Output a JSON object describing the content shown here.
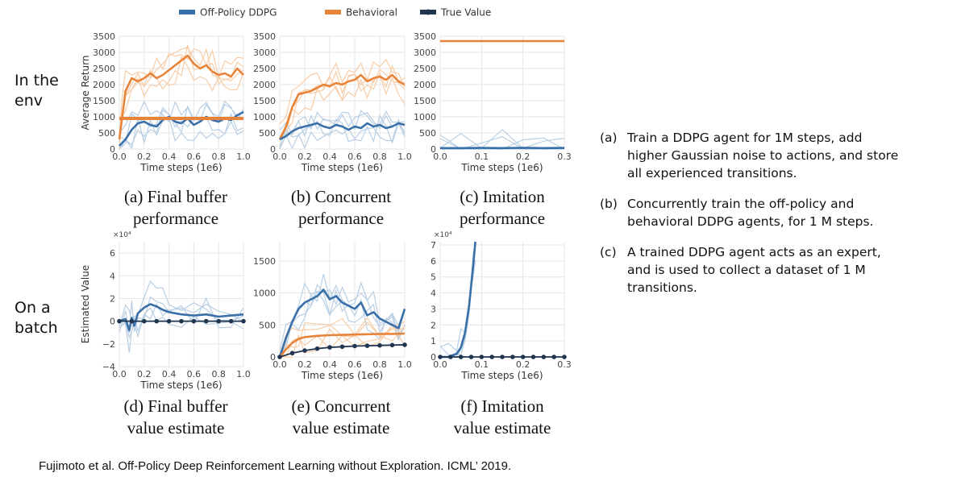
{
  "legend": [
    {
      "label": "Off-Policy DDPG",
      "color": "#3a6fa8",
      "marker": "line"
    },
    {
      "label": "Behavioral",
      "color": "#e8843a",
      "marker": "line"
    },
    {
      "label": "True Value",
      "color": "#1f3550",
      "marker": "dot-line"
    }
  ],
  "row_labels": {
    "top": [
      "In the",
      "env"
    ],
    "bottom": [
      "On a",
      "batch"
    ]
  },
  "captions": [
    [
      "(a) Final buffer",
      "performance"
    ],
    [
      "(b) Concurrent",
      "performance"
    ],
    [
      "(c) Imitation",
      "performance"
    ],
    [
      "(d) Final buffer",
      "value estimate"
    ],
    [
      "(e) Concurrent",
      "value estimate"
    ],
    [
      "(f) Imitation",
      "value estimate"
    ]
  ],
  "notes": [
    {
      "tag": "(a)",
      "lines": [
        "Train a DDPG agent for 1M steps, add",
        "higher Gaussian noise to actions, and store",
        "all experienced transitions."
      ]
    },
    {
      "tag": "(b)",
      "lines": [
        "Concurrently train the off-policy and",
        "behavioral DDPG agents, for 1 M steps."
      ]
    },
    {
      "tag": "(c)",
      "lines": [
        "A trained DDPG agent acts as an expert,",
        "and is used to collect a dataset of 1 M",
        "transitions."
      ]
    }
  ],
  "citation": "Fujimoto et al. Off-Policy Deep Reinforcement Learning without Exploration. ICML’ 2019.",
  "colors": {
    "ddpg": "#3a6fa8",
    "behavioral": "#e8843a",
    "true_value": "#1f3550",
    "light_blue": "#b9cfe4",
    "light_orange": "#f6cda8"
  },
  "chart_data": [
    {
      "id": "a",
      "type": "line",
      "xlabel": "Time steps (1e6)",
      "ylabel": "Average Return",
      "xlim": [
        0,
        1.0
      ],
      "ylim": [
        0,
        3500
      ],
      "xticks": [
        "0.0",
        "0.2",
        "0.4",
        "0.6",
        "0.8",
        "1.0"
      ],
      "xtick_values": [
        0,
        0.2,
        0.4,
        0.6,
        0.8,
        1.0
      ],
      "yticks": [
        "0",
        "500",
        "1000",
        "1500",
        "2000",
        "2500",
        "3000",
        "3500"
      ],
      "ytick_values": [
        0,
        500,
        1000,
        1500,
        2000,
        2500,
        3000,
        3500
      ],
      "y_multiplier": "",
      "series": [
        {
          "role": "behavioral",
          "x": [
            0,
            0.02,
            0.05,
            0.1,
            0.15,
            0.2,
            0.25,
            0.3,
            0.35,
            0.4,
            0.45,
            0.5,
            0.55,
            0.6,
            0.65,
            0.7,
            0.75,
            0.8,
            0.85,
            0.9,
            0.95,
            1.0
          ],
          "y": [
            300,
            900,
            1800,
            2200,
            2100,
            2200,
            2350,
            2200,
            2300,
            2450,
            2600,
            2750,
            2900,
            2650,
            2500,
            2600,
            2400,
            2300,
            2350,
            2250,
            2500,
            2300
          ]
        },
        {
          "role": "ddpg",
          "x": [
            0,
            0.05,
            0.1,
            0.15,
            0.2,
            0.25,
            0.3,
            0.35,
            0.4,
            0.45,
            0.5,
            0.55,
            0.6,
            0.65,
            0.7,
            0.75,
            0.8,
            0.85,
            0.9,
            0.95,
            1.0
          ],
          "y": [
            100,
            300,
            600,
            800,
            850,
            750,
            700,
            900,
            1000,
            850,
            800,
            950,
            750,
            850,
            1000,
            900,
            850,
            950,
            900,
            1050,
            1150
          ]
        },
        {
          "role": "flat_behavioral",
          "x": [
            0,
            1.0
          ],
          "y": [
            950,
            950
          ]
        }
      ]
    },
    {
      "id": "b",
      "type": "line",
      "xlabel": "Time steps (1e6)",
      "ylabel": "",
      "xlim": [
        0,
        1.0
      ],
      "ylim": [
        0,
        3500
      ],
      "xticks": [
        "0.0",
        "0.2",
        "0.4",
        "0.6",
        "0.8",
        "1.0"
      ],
      "xtick_values": [
        0,
        0.2,
        0.4,
        0.6,
        0.8,
        1.0
      ],
      "yticks": [
        "0",
        "500",
        "1000",
        "1500",
        "2000",
        "2500",
        "3000",
        "3500"
      ],
      "ytick_values": [
        0,
        500,
        1000,
        1500,
        2000,
        2500,
        3000,
        3500
      ],
      "y_multiplier": "",
      "series": [
        {
          "role": "behavioral",
          "x": [
            0,
            0.05,
            0.1,
            0.15,
            0.2,
            0.25,
            0.3,
            0.35,
            0.4,
            0.45,
            0.5,
            0.55,
            0.6,
            0.65,
            0.7,
            0.75,
            0.8,
            0.85,
            0.9,
            0.95,
            1.0
          ],
          "y": [
            300,
            700,
            1300,
            1700,
            1750,
            1800,
            1900,
            2000,
            1950,
            2050,
            2000,
            2100,
            2150,
            2300,
            2100,
            2200,
            2250,
            2150,
            2300,
            2100,
            2000
          ]
        },
        {
          "role": "ddpg",
          "x": [
            0,
            0.05,
            0.1,
            0.15,
            0.2,
            0.25,
            0.3,
            0.35,
            0.4,
            0.45,
            0.5,
            0.55,
            0.6,
            0.65,
            0.7,
            0.75,
            0.8,
            0.85,
            0.9,
            0.95,
            1.0
          ],
          "y": [
            300,
            400,
            550,
            650,
            700,
            750,
            800,
            700,
            650,
            750,
            700,
            600,
            700,
            650,
            800,
            700,
            750,
            650,
            700,
            800,
            750
          ]
        }
      ]
    },
    {
      "id": "c",
      "type": "line",
      "xlabel": "Time steps (1e6)",
      "ylabel": "",
      "xlim": [
        0,
        0.3
      ],
      "ylim": [
        0,
        3500
      ],
      "xticks": [
        "0.0",
        "0.1",
        "0.2",
        "0.3"
      ],
      "xtick_values": [
        0,
        0.1,
        0.2,
        0.3
      ],
      "yticks": [
        "0",
        "500",
        "1000",
        "1500",
        "2000",
        "2500",
        "3000",
        "3500"
      ],
      "ytick_values": [
        0,
        500,
        1000,
        1500,
        2000,
        2500,
        3000,
        3500
      ],
      "y_multiplier": "",
      "series": [
        {
          "role": "behavioral",
          "x": [
            0,
            0.3
          ],
          "y": [
            3350,
            3350
          ]
        },
        {
          "role": "ddpg",
          "x": [
            0,
            0.05,
            0.1,
            0.15,
            0.2,
            0.25,
            0.3
          ],
          "y": [
            30,
            30,
            35,
            30,
            40,
            30,
            35
          ]
        }
      ]
    },
    {
      "id": "d",
      "type": "line",
      "xlabel": "Time steps (1e6)",
      "ylabel": "Estimated Value",
      "xlim": [
        0,
        1.0
      ],
      "ylim": [
        -4,
        7
      ],
      "xticks": [
        "0.0",
        "0.2",
        "0.4",
        "0.6",
        "0.8",
        "1.0"
      ],
      "xtick_values": [
        0,
        0.2,
        0.4,
        0.6,
        0.8,
        1.0
      ],
      "yticks": [
        "−4",
        "−2",
        "0",
        "2",
        "4",
        "6"
      ],
      "ytick_values": [
        -4,
        -2,
        0,
        2,
        4,
        6
      ],
      "y_multiplier": "×10⁴",
      "series": [
        {
          "role": "ddpg",
          "x": [
            0,
            0.05,
            0.08,
            0.1,
            0.12,
            0.15,
            0.2,
            0.25,
            0.3,
            0.35,
            0.4,
            0.5,
            0.6,
            0.7,
            0.8,
            0.9,
            1.0
          ],
          "y": [
            0,
            0.2,
            -0.8,
            0.3,
            -0.4,
            0.7,
            1.2,
            1.5,
            1.3,
            1.0,
            0.8,
            0.6,
            0.5,
            0.6,
            0.4,
            0.5,
            0.6
          ]
        },
        {
          "role": "true_value",
          "x": [
            0,
            0.1,
            0.2,
            0.3,
            0.4,
            0.5,
            0.6,
            0.7,
            0.8,
            0.9,
            1.0
          ],
          "y": [
            0,
            0,
            0,
            0,
            0,
            0,
            0,
            0,
            0,
            0,
            0
          ]
        }
      ]
    },
    {
      "id": "e",
      "type": "line",
      "xlabel": "Time steps (1e6)",
      "ylabel": "",
      "xlim": [
        0,
        1.0
      ],
      "ylim": [
        0,
        1800
      ],
      "xticks": [
        "0.0",
        "0.2",
        "0.4",
        "0.6",
        "0.8",
        "1.0"
      ],
      "xtick_values": [
        0,
        0.2,
        0.4,
        0.6,
        0.8,
        1.0
      ],
      "yticks": [
        "0",
        "500",
        "1000",
        "1500"
      ],
      "ytick_values": [
        0,
        500,
        1000,
        1500
      ],
      "y_multiplier": "",
      "series": [
        {
          "role": "ddpg",
          "x": [
            0,
            0.05,
            0.1,
            0.15,
            0.2,
            0.25,
            0.3,
            0.35,
            0.4,
            0.45,
            0.5,
            0.55,
            0.6,
            0.65,
            0.7,
            0.75,
            0.8,
            0.85,
            0.9,
            0.95,
            1.0
          ],
          "y": [
            0,
            300,
            550,
            750,
            850,
            900,
            950,
            1050,
            900,
            950,
            850,
            800,
            750,
            850,
            650,
            700,
            600,
            550,
            500,
            450,
            750
          ]
        },
        {
          "role": "behavioral",
          "x": [
            0,
            0.05,
            0.1,
            0.15,
            0.2,
            0.3,
            0.4,
            0.5,
            0.6,
            0.7,
            0.8,
            0.9,
            1.0
          ],
          "y": [
            0,
            120,
            220,
            280,
            310,
            330,
            340,
            345,
            350,
            355,
            360,
            360,
            365
          ]
        },
        {
          "role": "true_value",
          "x": [
            0,
            0.1,
            0.2,
            0.3,
            0.4,
            0.5,
            0.6,
            0.7,
            0.8,
            0.9,
            1.0
          ],
          "y": [
            0,
            60,
            100,
            130,
            150,
            160,
            170,
            175,
            180,
            185,
            190
          ]
        }
      ]
    },
    {
      "id": "f",
      "type": "line",
      "xlabel": "Time steps (1e6)",
      "ylabel": "",
      "xlim": [
        0,
        0.3
      ],
      "ylim": [
        0,
        7.2
      ],
      "xticks": [
        "0.0",
        "0.1",
        "0.2",
        "0.3"
      ],
      "xtick_values": [
        0,
        0.1,
        0.2,
        0.3
      ],
      "yticks": [
        "0",
        "1",
        "2",
        "3",
        "4",
        "5",
        "6",
        "7"
      ],
      "ytick_values": [
        0,
        1,
        2,
        3,
        4,
        5,
        6,
        7
      ],
      "y_multiplier": "×10⁴",
      "series": [
        {
          "role": "ddpg",
          "x": [
            0,
            0.02,
            0.04,
            0.05,
            0.06,
            0.07,
            0.08,
            0.085
          ],
          "y": [
            0,
            0,
            0.2,
            0.6,
            1.5,
            3.2,
            5.8,
            7.2
          ]
        },
        {
          "role": "true_value",
          "x": [
            0,
            0.025,
            0.05,
            0.075,
            0.1,
            0.125,
            0.15,
            0.175,
            0.2,
            0.225,
            0.25,
            0.275,
            0.3
          ],
          "y": [
            0,
            0,
            0,
            0,
            0,
            0,
            0,
            0,
            0,
            0,
            0,
            0,
            0
          ]
        }
      ]
    }
  ]
}
